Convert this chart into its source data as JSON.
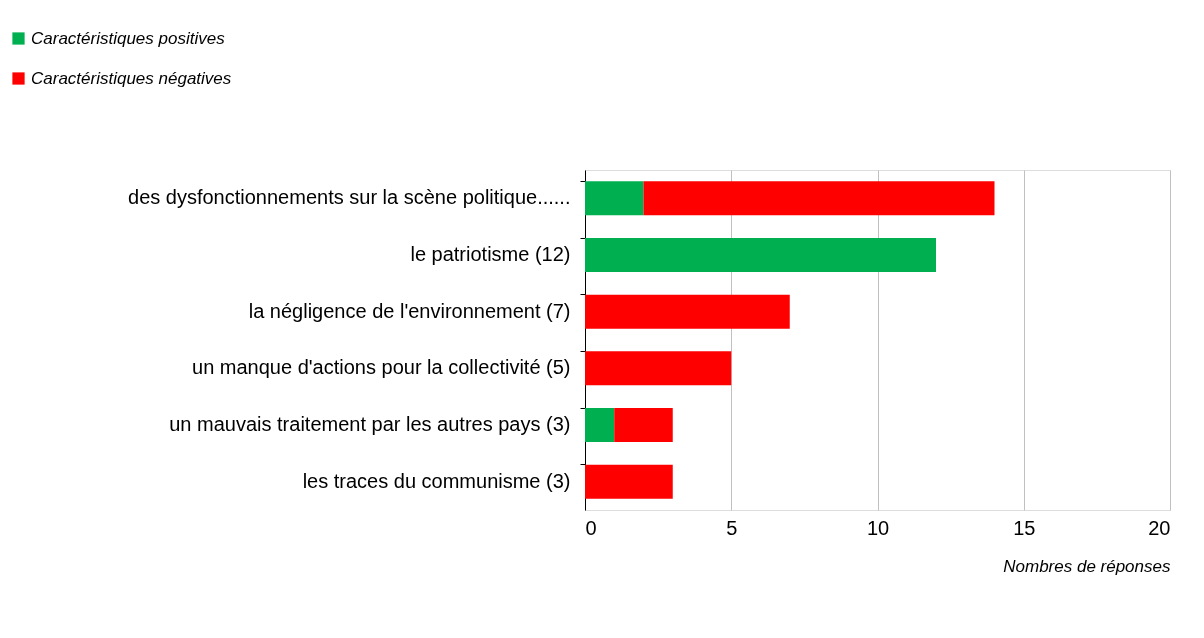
{
  "chart_data": {
    "type": "bar",
    "orientation": "horizontal",
    "stacked": true,
    "categories": [
      "des dysfonctionnements sur la scène politique......",
      "le patriotisme (12)",
      "la négligence de l'environnement (7)",
      "un manque d'actions pour la collectivité (5)",
      "un mauvais traitement par les autres pays (3)",
      "les traces du communisme (3)"
    ],
    "series": [
      {
        "name": "Caractéristiques positives",
        "color": "#00b050",
        "values": [
          2,
          12,
          0,
          0,
          1,
          0
        ]
      },
      {
        "name": "Caractéristiques négatives",
        "color": "#ff0000",
        "values": [
          12,
          0,
          7,
          5,
          2,
          3
        ]
      }
    ],
    "xlim": [
      0,
      20
    ],
    "xticks": [
      0,
      5,
      10,
      15,
      20
    ],
    "xlabel": "Nombres de réponses",
    "grid": "x",
    "legend": "top left"
  }
}
